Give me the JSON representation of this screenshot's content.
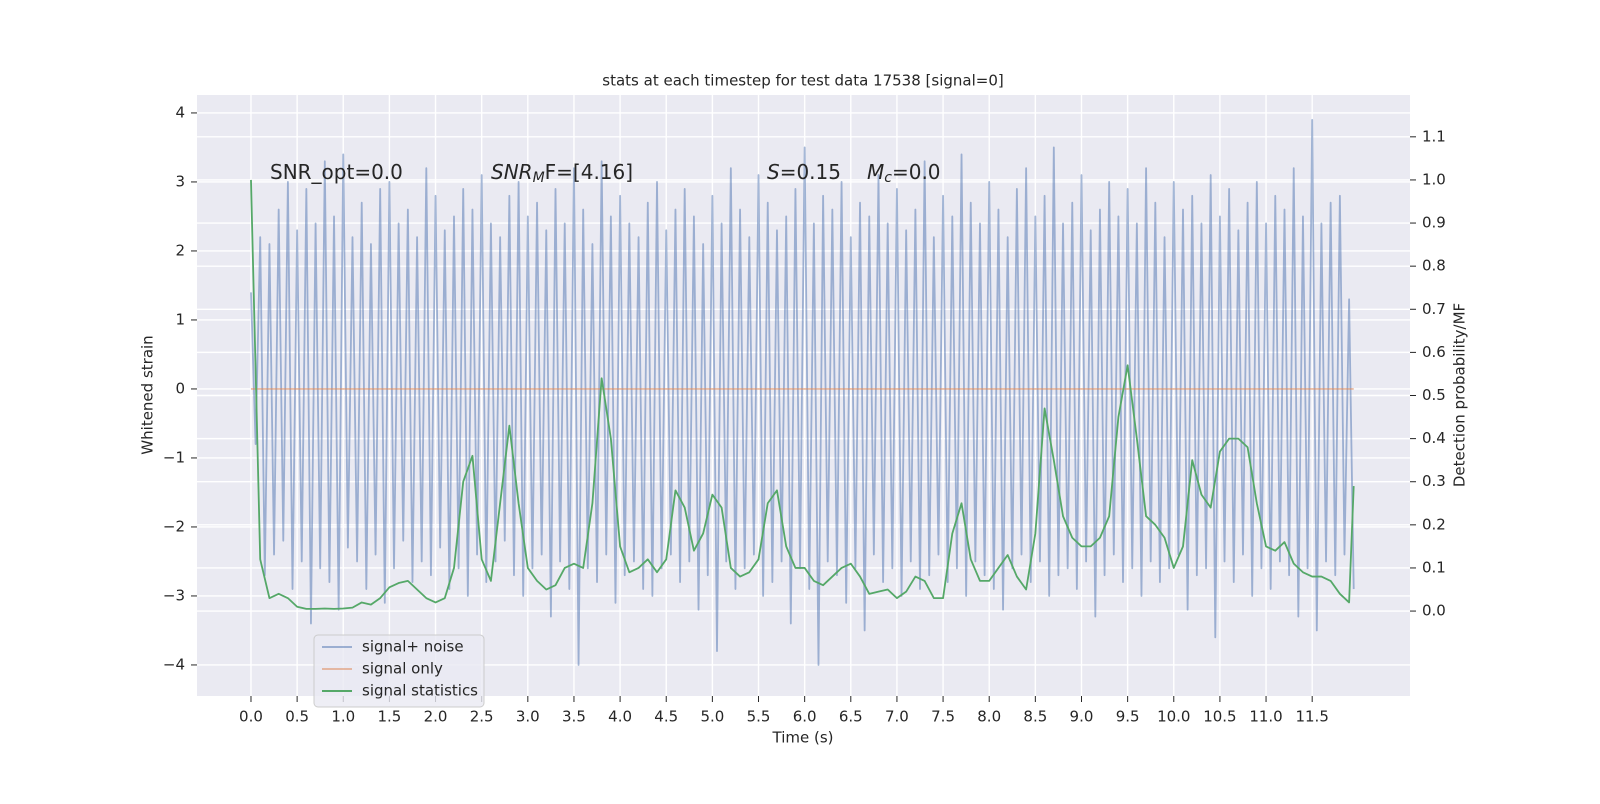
{
  "chart_data": {
    "type": "line",
    "title": "stats at each timestep for test data 17538 [signal=0]",
    "xlabel": "Time (s)",
    "ylabel": "Whitened strain",
    "y2label": "Detection probability/MF",
    "xlim": [
      -0.585,
      12.56
    ],
    "ylim": [
      -4.45,
      4.26
    ],
    "y2lim": [
      -0.197,
      1.197
    ],
    "xticks": [
      {
        "value": 0,
        "label": "0.0"
      },
      0.5,
      {
        "value": 1,
        "label": "1.0"
      },
      1.5,
      {
        "value": 2,
        "label": "2.0"
      },
      2.5,
      {
        "value": 3,
        "label": "3.0"
      },
      3.5,
      {
        "value": 4,
        "label": "4.0"
      },
      4.5,
      {
        "value": 5,
        "label": "5.0"
      },
      5.5,
      {
        "value": 6,
        "label": "6.0"
      },
      6.5,
      {
        "value": 7,
        "label": "7.0"
      },
      7.5,
      {
        "value": 8,
        "label": "8.0"
      },
      8.5,
      {
        "value": 9,
        "label": "9.0"
      },
      9.5,
      {
        "value": 10,
        "label": "10.0"
      },
      10.5,
      {
        "value": 11,
        "label": "11.0"
      },
      11.5
    ],
    "yticks": [
      {
        "value": -4,
        "label": "−4"
      },
      {
        "value": -3,
        "label": "−3"
      },
      {
        "value": -2,
        "label": "−2"
      },
      {
        "value": -1,
        "label": "−1"
      },
      0,
      1,
      2,
      3,
      4
    ],
    "y2ticks": [
      {
        "value": 0,
        "label": "0.0"
      },
      0.1,
      0.2,
      0.3,
      0.4,
      0.5,
      0.6,
      0.7,
      0.8,
      0.9,
      {
        "value": 1,
        "label": "1.0"
      },
      1.1
    ],
    "grid": true,
    "legend": "lower left",
    "annotations": [
      [
        {
          "t": "SNR_opt=0.0"
        }
      ],
      [
        {
          "t": "SNR",
          "italic": true
        },
        {
          "t": "M",
          "italic": true,
          "sub": true
        },
        {
          "t": "F=[4.16]"
        }
      ],
      [
        {
          "t": "S",
          "italic": true
        },
        {
          "t": "=0.15"
        },
        {
          "t": "M",
          "italic": true,
          "gap": true
        },
        {
          "t": "c",
          "italic": true,
          "sub": true
        },
        {
          "t": "=0.0"
        }
      ]
    ],
    "series": [
      {
        "name": "signal+ noise",
        "color": "#4c72b0",
        "opacity": 0.5,
        "x": [
          0,
          0.05,
          0.1,
          0.15,
          0.2,
          0.25,
          0.3,
          0.35,
          0.4,
          0.45,
          0.5,
          0.55,
          0.6,
          0.65,
          0.7,
          0.75,
          0.8,
          0.85,
          0.9,
          0.95,
          1,
          1.05,
          1.1,
          1.15,
          1.2,
          1.25,
          1.3,
          1.35,
          1.4,
          1.45,
          1.5,
          1.55,
          1.6,
          1.65,
          1.7,
          1.75,
          1.8,
          1.85,
          1.9,
          1.95,
          2,
          2.05,
          2.1,
          2.15,
          2.2,
          2.25,
          2.3,
          2.35,
          2.4,
          2.45,
          2.5,
          2.55,
          2.6,
          2.65,
          2.7,
          2.75,
          2.8,
          2.85,
          2.9,
          2.95,
          3,
          3.05,
          3.1,
          3.15,
          3.2,
          3.25,
          3.3,
          3.35,
          3.4,
          3.45,
          3.5,
          3.55,
          3.6,
          3.65,
          3.7,
          3.75,
          3.8,
          3.85,
          3.9,
          3.95,
          4,
          4.05,
          4.1,
          4.15,
          4.2,
          4.25,
          4.3,
          4.35,
          4.4,
          4.45,
          4.5,
          4.55,
          4.6,
          4.65,
          4.7,
          4.75,
          4.8,
          4.85,
          4.9,
          4.95,
          5,
          5.05,
          5.1,
          5.15,
          5.2,
          5.25,
          5.3,
          5.35,
          5.4,
          5.45,
          5.5,
          5.55,
          5.6,
          5.65,
          5.7,
          5.75,
          5.8,
          5.85,
          5.9,
          5.95,
          6,
          6.05,
          6.1,
          6.15,
          6.2,
          6.25,
          6.3,
          6.35,
          6.4,
          6.45,
          6.5,
          6.55,
          6.6,
          6.65,
          6.7,
          6.75,
          6.8,
          6.85,
          6.9,
          6.95,
          7,
          7.05,
          7.1,
          7.15,
          7.2,
          7.25,
          7.3,
          7.35,
          7.4,
          7.45,
          7.5,
          7.55,
          7.6,
          7.65,
          7.7,
          7.75,
          7.8,
          7.85,
          7.9,
          7.95,
          8,
          8.05,
          8.1,
          8.15,
          8.2,
          8.25,
          8.3,
          8.35,
          8.4,
          8.45,
          8.5,
          8.55,
          8.6,
          8.65,
          8.7,
          8.75,
          8.8,
          8.85,
          8.9,
          8.95,
          9,
          9.05,
          9.1,
          9.15,
          9.2,
          9.25,
          9.3,
          9.35,
          9.4,
          9.45,
          9.5,
          9.55,
          9.6,
          9.65,
          9.7,
          9.75,
          9.8,
          9.85,
          9.9,
          9.95,
          10,
          10.05,
          10.1,
          10.15,
          10.2,
          10.25,
          10.3,
          10.35,
          10.4,
          10.45,
          10.5,
          10.55,
          10.6,
          10.65,
          10.7,
          10.75,
          10.8,
          10.85,
          10.9,
          10.95,
          11,
          11.05,
          11.1,
          11.15,
          11.2,
          11.25,
          11.3,
          11.35,
          11.4,
          11.45,
          11.5,
          11.55,
          11.6,
          11.65,
          11.7,
          11.75,
          11.8,
          11.85,
          11.9,
          11.95
        ],
        "values": [
          1.4,
          -0.8,
          2.2,
          -2.7,
          2.1,
          -2.4,
          2.6,
          -2.2,
          3.0,
          -2.9,
          2.3,
          -2.5,
          2.9,
          -3.4,
          2.4,
          -2.6,
          3.3,
          -2.8,
          2.5,
          -3.2,
          3.4,
          -2.3,
          2.2,
          -2.5,
          2.7,
          -2.9,
          2.1,
          -2.4,
          2.9,
          -3.1,
          3.0,
          -2.6,
          2.4,
          -2.2,
          2.6,
          -2.8,
          2.2,
          -2.5,
          3.2,
          -2.7,
          2.8,
          -2.3,
          2.3,
          -2.9,
          2.5,
          -2.6,
          2.9,
          -3.0,
          2.6,
          -2.4,
          3.1,
          -2.8,
          2.4,
          -2.5,
          2.2,
          -2.2,
          2.8,
          -2.7,
          3.0,
          -3.0,
          2.5,
          -2.6,
          2.7,
          -2.4,
          2.3,
          -3.3,
          2.9,
          -2.5,
          2.4,
          -2.9,
          3.2,
          -4.0,
          2.6,
          -2.6,
          2.1,
          -2.8,
          3.3,
          -2.4,
          2.5,
          -3.1,
          2.8,
          -2.7,
          2.4,
          -2.5,
          2.2,
          -2.9,
          2.7,
          -3.0,
          3.0,
          -2.6,
          2.3,
          -2.4,
          2.6,
          -2.8,
          2.9,
          -2.5,
          2.5,
          -3.2,
          2.1,
          -2.7,
          2.8,
          -3.8,
          2.4,
          -2.5,
          3.2,
          -2.9,
          2.6,
          -2.6,
          2.2,
          -2.4,
          3.1,
          -3.0,
          2.7,
          -2.8,
          2.3,
          -2.5,
          2.5,
          -3.4,
          2.9,
          -2.6,
          3.5,
          -2.9,
          2.4,
          -4.0,
          2.8,
          -2.5,
          2.6,
          -2.7,
          3.0,
          -3.1,
          2.2,
          -2.6,
          2.7,
          -3.5,
          2.5,
          -2.4,
          3.1,
          -2.8,
          2.4,
          -2.6,
          2.9,
          -3.0,
          2.3,
          -2.5,
          2.6,
          -2.9,
          3.3,
          -2.7,
          2.2,
          -2.4,
          2.8,
          -2.8,
          2.5,
          -2.6,
          3.4,
          -3.0,
          2.7,
          -2.5,
          2.4,
          -2.7,
          3.0,
          -2.9,
          2.6,
          -3.2,
          2.2,
          -2.6,
          2.9,
          -2.4,
          3.2,
          -2.8,
          2.5,
          -2.5,
          2.8,
          -3.0,
          3.5,
          -2.7,
          2.4,
          -2.6,
          2.7,
          -2.9,
          3.1,
          -2.5,
          2.3,
          -3.3,
          2.6,
          -2.7,
          3.0,
          -2.4,
          2.5,
          -2.8,
          2.9,
          -2.6,
          2.4,
          -3.0,
          3.2,
          -2.5,
          2.7,
          -2.8,
          2.2,
          -2.6,
          3.0,
          -2.4,
          2.6,
          -3.2,
          2.8,
          -2.7,
          2.4,
          -2.6,
          3.1,
          -3.6,
          2.5,
          -2.5,
          2.9,
          -2.8,
          2.3,
          -2.4,
          2.7,
          -3.0,
          3.0,
          -2.6,
          2.4,
          -2.9,
          2.8,
          -2.5,
          2.6,
          -2.7,
          3.2,
          -3.3,
          2.5,
          -2.6,
          3.9,
          -3.5,
          2.4,
          -2.5,
          2.7,
          -2.7,
          2.8,
          -2.4,
          1.3,
          -2.9
        ]
      },
      {
        "name": "signal only",
        "color": "#dd8452",
        "opacity": 0.5,
        "x": [
          0,
          11.95
        ],
        "values": [
          0,
          0
        ]
      },
      {
        "name": "signal statistics",
        "color": "#55a868",
        "opacity": 1,
        "axis": "y2",
        "x": [
          0,
          0.1,
          0.2,
          0.3,
          0.4,
          0.5,
          0.6,
          0.7,
          0.8,
          0.9,
          1,
          1.1,
          1.2,
          1.3,
          1.4,
          1.5,
          1.6,
          1.7,
          1.8,
          1.9,
          2,
          2.1,
          2.2,
          2.3,
          2.4,
          2.5,
          2.6,
          2.7,
          2.8,
          2.9,
          3,
          3.1,
          3.2,
          3.3,
          3.4,
          3.5,
          3.6,
          3.7,
          3.8,
          3.9,
          4,
          4.1,
          4.2,
          4.3,
          4.4,
          4.5,
          4.6,
          4.7,
          4.8,
          4.9,
          5,
          5.1,
          5.2,
          5.3,
          5.4,
          5.5,
          5.6,
          5.7,
          5.8,
          5.9,
          6,
          6.1,
          6.2,
          6.3,
          6.4,
          6.5,
          6.6,
          6.7,
          6.8,
          6.9,
          7,
          7.1,
          7.2,
          7.3,
          7.4,
          7.5,
          7.6,
          7.7,
          7.8,
          7.9,
          8,
          8.1,
          8.2,
          8.3,
          8.4,
          8.5,
          8.6,
          8.7,
          8.8,
          8.9,
          9,
          9.1,
          9.2,
          9.3,
          9.4,
          9.5,
          9.6,
          9.7,
          9.8,
          9.9,
          10,
          10.1,
          10.2,
          10.3,
          10.4,
          10.5,
          10.6,
          10.7,
          10.8,
          10.9,
          11,
          11.1,
          11.2,
          11.3,
          11.4,
          11.5,
          11.6,
          11.7,
          11.8,
          11.9,
          11.95
        ],
        "values": [
          1.0,
          0.12,
          0.03,
          0.04,
          0.03,
          0.01,
          0.005,
          0.005,
          0.006,
          0.005,
          0.006,
          0.008,
          0.02,
          0.015,
          0.03,
          0.055,
          0.065,
          0.07,
          0.05,
          0.03,
          0.02,
          0.03,
          0.1,
          0.3,
          0.36,
          0.12,
          0.07,
          0.25,
          0.43,
          0.25,
          0.1,
          0.07,
          0.05,
          0.06,
          0.1,
          0.11,
          0.1,
          0.25,
          0.54,
          0.4,
          0.15,
          0.09,
          0.1,
          0.12,
          0.09,
          0.12,
          0.28,
          0.24,
          0.14,
          0.18,
          0.27,
          0.24,
          0.1,
          0.08,
          0.09,
          0.12,
          0.25,
          0.28,
          0.15,
          0.1,
          0.1,
          0.07,
          0.06,
          0.08,
          0.1,
          0.11,
          0.08,
          0.04,
          0.045,
          0.05,
          0.03,
          0.045,
          0.08,
          0.07,
          0.03,
          0.03,
          0.18,
          0.25,
          0.12,
          0.07,
          0.07,
          0.1,
          0.13,
          0.08,
          0.05,
          0.18,
          0.47,
          0.35,
          0.22,
          0.17,
          0.15,
          0.15,
          0.17,
          0.22,
          0.45,
          0.57,
          0.4,
          0.22,
          0.2,
          0.17,
          0.1,
          0.15,
          0.35,
          0.27,
          0.24,
          0.37,
          0.4,
          0.4,
          0.38,
          0.25,
          0.15,
          0.14,
          0.16,
          0.11,
          0.09,
          0.08,
          0.08,
          0.07,
          0.04,
          0.02,
          0.29
        ]
      }
    ]
  }
}
